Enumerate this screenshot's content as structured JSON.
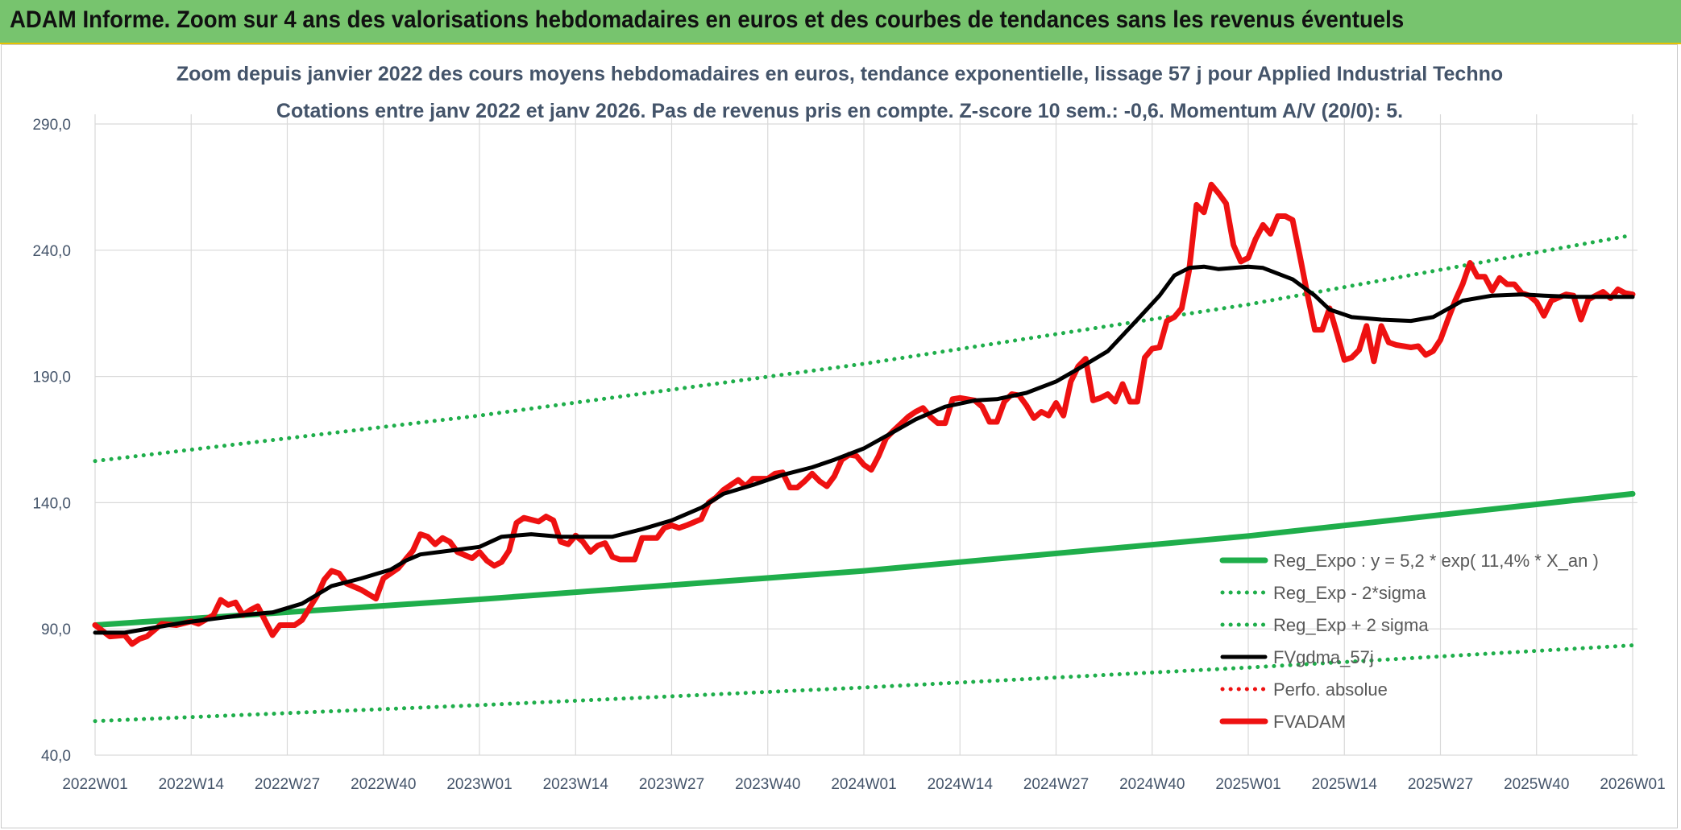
{
  "banner": {
    "title": "ADAM Informe. Zoom sur 4 ans des valorisations hebdomadaires en euros et des courbes de tendances sans les revenus éventuels"
  },
  "colors": {
    "banner": "#77c46e",
    "trend": "#1fae4b",
    "smooth": "#000000",
    "price": "#ee1111",
    "perf": "#ee1111"
  },
  "chart_data": {
    "type": "line",
    "title": "Zoom depuis janvier 2022 des cours moyens hebdomadaires en euros, tendance exponentielle, lissage 57 j pour Applied Industrial Techno",
    "subtitle": "Cotations entre janv 2022 et janv 2026. Pas de revenus pris en compte. Z-score 10 sem.: -0,6. Momentum A/V (20/0): 5.",
    "xlabel": "",
    "ylabel": "",
    "x_ticks": [
      "2022W01",
      "2022W14",
      "2022W27",
      "2022W40",
      "2023W01",
      "2023W14",
      "2023W27",
      "2023W40",
      "2024W01",
      "2024W14",
      "2024W27",
      "2024W40",
      "2025W01",
      "2025W14",
      "2025W27",
      "2025W40",
      "2026W01"
    ],
    "y_ticks": [
      "40,0",
      "90,0",
      "140,0",
      "190,0",
      "240,0",
      "290,0"
    ],
    "ylim": [
      40,
      290
    ],
    "xlim_weeks": [
      0,
      208
    ],
    "grid": true,
    "legend_position": "bottom-right",
    "series": [
      {
        "name": "Reg_Expo : y = 5,2 * exp( 11,4% *  X_an )",
        "style": "solid-thick",
        "color": "#1fae4b",
        "points": [
          [
            0,
            91.5
          ],
          [
            52,
            101.7
          ],
          [
            104,
            113.0
          ],
          [
            156,
            126.8
          ],
          [
            208,
            143.5
          ]
        ]
      },
      {
        "name": "Reg_Exp - 2*sigma",
        "style": "dotted",
        "color": "#1fae4b",
        "points": [
          [
            0,
            53.5
          ],
          [
            52,
            59.8
          ],
          [
            104,
            66.8
          ],
          [
            156,
            74.7
          ],
          [
            208,
            83.5
          ]
        ]
      },
      {
        "name": "Reg_Exp + 2 sigma",
        "style": "dotted",
        "color": "#1fae4b",
        "points": [
          [
            0,
            156.5
          ],
          [
            52,
            174.5
          ],
          [
            104,
            195.0
          ],
          [
            156,
            218.5
          ],
          [
            208,
            246.0
          ]
        ]
      },
      {
        "name": "FVgdma_57j",
        "style": "solid",
        "color": "#000000",
        "points": [
          [
            0,
            88.5
          ],
          [
            4,
            88.5
          ],
          [
            8,
            90.5
          ],
          [
            12,
            92.5
          ],
          [
            16,
            94.0
          ],
          [
            20,
            95.5
          ],
          [
            24,
            96.5
          ],
          [
            28,
            100.0
          ],
          [
            30,
            103.5
          ],
          [
            32,
            107.0
          ],
          [
            36,
            110.0
          ],
          [
            40,
            113.5
          ],
          [
            42,
            117.0
          ],
          [
            44,
            119.5
          ],
          [
            48,
            121.0
          ],
          [
            52,
            122.5
          ],
          [
            55,
            126.5
          ],
          [
            59,
            127.5
          ],
          [
            63,
            126.5
          ],
          [
            67,
            126.5
          ],
          [
            70,
            126.5
          ],
          [
            74,
            129.5
          ],
          [
            78,
            133.0
          ],
          [
            82,
            138.0
          ],
          [
            85,
            143.5
          ],
          [
            89,
            147.0
          ],
          [
            93,
            151.0
          ],
          [
            97,
            154.0
          ],
          [
            100,
            157.0
          ],
          [
            104,
            161.5
          ],
          [
            108,
            168.0
          ],
          [
            111,
            173.0
          ],
          [
            115,
            178.0
          ],
          [
            119,
            180.5
          ],
          [
            122,
            181.0
          ],
          [
            126,
            183.5
          ],
          [
            130,
            188.0
          ],
          [
            133,
            193.0
          ],
          [
            137,
            200.0
          ],
          [
            141,
            212.5
          ],
          [
            144,
            222.0
          ],
          [
            146,
            230.0
          ],
          [
            148,
            233.0
          ],
          [
            150,
            233.5
          ],
          [
            152,
            232.5
          ],
          [
            156,
            233.5
          ],
          [
            158,
            233.0
          ],
          [
            162,
            228.5
          ],
          [
            165,
            222.0
          ],
          [
            167,
            216.5
          ],
          [
            170,
            213.5
          ],
          [
            174,
            212.5
          ],
          [
            178,
            212.0
          ],
          [
            181,
            213.5
          ],
          [
            185,
            220.0
          ],
          [
            189,
            222.0
          ],
          [
            193,
            222.5
          ],
          [
            196,
            222.0
          ],
          [
            200,
            221.5
          ],
          [
            204,
            221.5
          ],
          [
            208,
            221.5
          ]
        ]
      },
      {
        "name": "Perfo. absolue",
        "style": "dotted",
        "color": "#ee1111",
        "points": []
      },
      {
        "name": "FVADAM",
        "style": "solid-thick",
        "color": "#ee1111",
        "points": [
          [
            0,
            91.5
          ],
          [
            2,
            87.0
          ],
          [
            4,
            87.5
          ],
          [
            5,
            84.0
          ],
          [
            6,
            86.0
          ],
          [
            7,
            87.0
          ],
          [
            9,
            92.0
          ],
          [
            11,
            91.5
          ],
          [
            13,
            93.0
          ],
          [
            14,
            92.0
          ],
          [
            16,
            95.5
          ],
          [
            17,
            101.5
          ],
          [
            18,
            99.5
          ],
          [
            19,
            100.5
          ],
          [
            20,
            95.5
          ],
          [
            21,
            97.5
          ],
          [
            22,
            99.0
          ],
          [
            24,
            87.5
          ],
          [
            25,
            91.5
          ],
          [
            27,
            91.5
          ],
          [
            28,
            93.5
          ],
          [
            30,
            103.0
          ],
          [
            31,
            109.5
          ],
          [
            32,
            113.0
          ],
          [
            33,
            112.0
          ],
          [
            34,
            108.0
          ],
          [
            36,
            105.5
          ],
          [
            38,
            102.0
          ],
          [
            39,
            110.0
          ],
          [
            41,
            114.0
          ],
          [
            43,
            121.0
          ],
          [
            44,
            127.5
          ],
          [
            45,
            126.5
          ],
          [
            46,
            123.5
          ],
          [
            47,
            126.0
          ],
          [
            48,
            124.5
          ],
          [
            49,
            120.5
          ],
          [
            51,
            118.0
          ],
          [
            52,
            120.5
          ],
          [
            53,
            117.0
          ],
          [
            54,
            115.0
          ],
          [
            55,
            116.5
          ],
          [
            56,
            121.0
          ],
          [
            57,
            132.0
          ],
          [
            58,
            134.0
          ],
          [
            60,
            132.5
          ],
          [
            61,
            134.5
          ],
          [
            62,
            133.0
          ],
          [
            63,
            124.5
          ],
          [
            64,
            123.5
          ],
          [
            65,
            127.0
          ],
          [
            66,
            124.5
          ],
          [
            67,
            120.5
          ],
          [
            68,
            123.0
          ],
          [
            69,
            124.0
          ],
          [
            70,
            118.5
          ],
          [
            71,
            117.5
          ],
          [
            73,
            117.5
          ],
          [
            74,
            126.0
          ],
          [
            76,
            126.0
          ],
          [
            77,
            130.0
          ],
          [
            78,
            131.0
          ],
          [
            79,
            130.0
          ],
          [
            80,
            131.0
          ],
          [
            82,
            133.5
          ],
          [
            83,
            140.0
          ],
          [
            84,
            142.0
          ],
          [
            85,
            145.0
          ],
          [
            87,
            149.0
          ],
          [
            88,
            146.5
          ],
          [
            89,
            149.5
          ],
          [
            91,
            149.5
          ],
          [
            92,
            151.5
          ],
          [
            93,
            152.0
          ],
          [
            94,
            146.0
          ],
          [
            95,
            146.0
          ],
          [
            96,
            148.5
          ],
          [
            97,
            151.5
          ],
          [
            98,
            148.5
          ],
          [
            99,
            146.5
          ],
          [
            100,
            150.5
          ],
          [
            101,
            157.0
          ],
          [
            102,
            159.0
          ],
          [
            103,
            158.5
          ],
          [
            104,
            155.0
          ],
          [
            105,
            153.0
          ],
          [
            106,
            158.5
          ],
          [
            107,
            165.5
          ],
          [
            108,
            168.5
          ],
          [
            110,
            174.0
          ],
          [
            111,
            176.0
          ],
          [
            112,
            177.5
          ],
          [
            113,
            174.0
          ],
          [
            114,
            171.5
          ],
          [
            115,
            171.5
          ],
          [
            116,
            181.0
          ],
          [
            117,
            181.5
          ],
          [
            119,
            180.5
          ],
          [
            120,
            178.0
          ],
          [
            121,
            172.0
          ],
          [
            122,
            172.0
          ],
          [
            123,
            180.0
          ],
          [
            124,
            183.0
          ],
          [
            125,
            182.5
          ],
          [
            126,
            178.5
          ],
          [
            127,
            173.5
          ],
          [
            128,
            176.0
          ],
          [
            129,
            174.5
          ],
          [
            130,
            179.5
          ],
          [
            131,
            174.5
          ],
          [
            132,
            188.0
          ],
          [
            133,
            194.0
          ],
          [
            134,
            197.0
          ],
          [
            135,
            180.5
          ],
          [
            136,
            181.5
          ],
          [
            137,
            183.0
          ],
          [
            138,
            180.0
          ],
          [
            139,
            187.0
          ],
          [
            140,
            180.0
          ],
          [
            141,
            180.0
          ],
          [
            142,
            197.5
          ],
          [
            143,
            201.0
          ],
          [
            144,
            201.5
          ],
          [
            145,
            212.0
          ],
          [
            146,
            213.5
          ],
          [
            147,
            217.0
          ],
          [
            148,
            232.0
          ],
          [
            149,
            258.0
          ],
          [
            150,
            255.0
          ],
          [
            151,
            266.0
          ],
          [
            152,
            262.5
          ],
          [
            153,
            258.5
          ],
          [
            154,
            242.0
          ],
          [
            155,
            235.5
          ],
          [
            156,
            237.0
          ],
          [
            157,
            244.5
          ],
          [
            158,
            250.0
          ],
          [
            159,
            246.5
          ],
          [
            160,
            253.5
          ],
          [
            161,
            253.5
          ],
          [
            162,
            252.0
          ],
          [
            163,
            237.5
          ],
          [
            164,
            222.5
          ],
          [
            165,
            208.5
          ],
          [
            166,
            208.5
          ],
          [
            167,
            217.0
          ],
          [
            168,
            207.0
          ],
          [
            169,
            196.5
          ],
          [
            170,
            197.5
          ],
          [
            171,
            200.5
          ],
          [
            172,
            210.0
          ],
          [
            173,
            196.0
          ],
          [
            174,
            210.0
          ],
          [
            175,
            203.5
          ],
          [
            176,
            202.5
          ],
          [
            178,
            201.5
          ],
          [
            179,
            202.0
          ],
          [
            180,
            198.5
          ],
          [
            181,
            200.0
          ],
          [
            182,
            204.5
          ],
          [
            183,
            212.5
          ],
          [
            184,
            220.0
          ],
          [
            185,
            226.5
          ],
          [
            186,
            235.0
          ],
          [
            187,
            229.5
          ],
          [
            188,
            229.5
          ],
          [
            189,
            224.0
          ],
          [
            190,
            229.0
          ],
          [
            191,
            226.5
          ],
          [
            192,
            226.5
          ],
          [
            193,
            223.0
          ],
          [
            194,
            222.0
          ],
          [
            195,
            219.5
          ],
          [
            196,
            214.0
          ],
          [
            197,
            220.0
          ],
          [
            199,
            222.5
          ],
          [
            200,
            222.0
          ],
          [
            201,
            212.5
          ],
          [
            202,
            220.5
          ],
          [
            203,
            222.0
          ],
          [
            204,
            223.5
          ],
          [
            205,
            221.0
          ],
          [
            206,
            224.5
          ],
          [
            207,
            223.0
          ],
          [
            208,
            222.5
          ]
        ]
      }
    ]
  }
}
